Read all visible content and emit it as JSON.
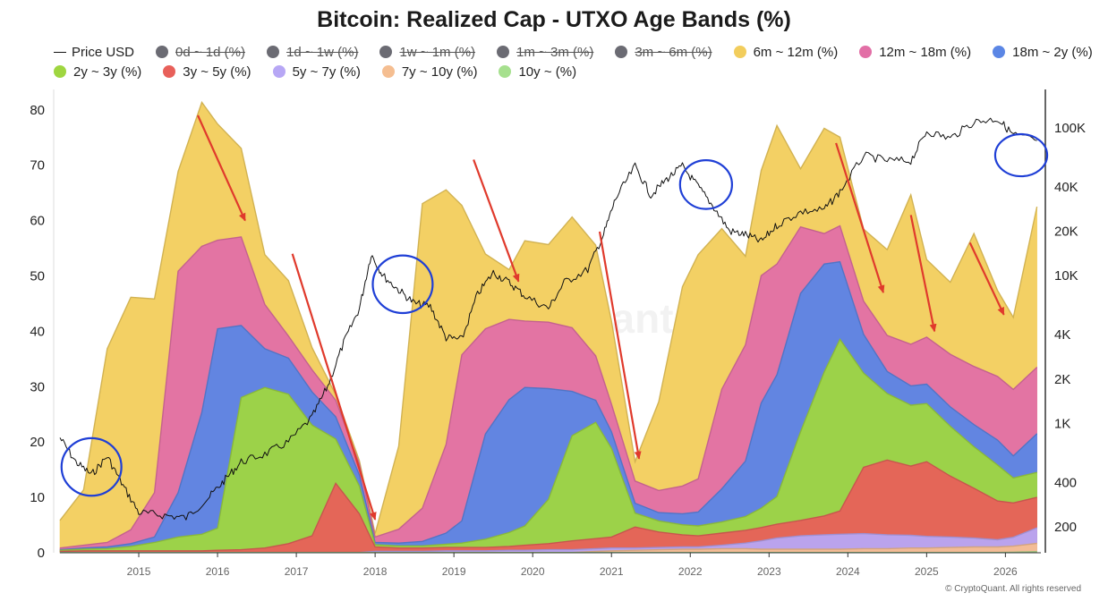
{
  "title": "Bitcoin: Realized Cap - UTXO Age Bands (%)",
  "legend": {
    "row1": [
      {
        "label": "Price USD",
        "kind": "line",
        "color": "#111111",
        "disabled": false
      },
      {
        "label": "0d ~ 1d (%)",
        "color": "#6b6b73",
        "disabled": true
      },
      {
        "label": "1d ~ 1w (%)",
        "color": "#6b6b73",
        "disabled": true
      },
      {
        "label": "1w ~ 1m (%)",
        "color": "#6b6b73",
        "disabled": true
      },
      {
        "label": "1m ~ 3m (%)",
        "color": "#6b6b73",
        "disabled": true
      },
      {
        "label": "3m ~ 6m (%)",
        "color": "#6b6b73",
        "disabled": true
      },
      {
        "label": "6m ~ 12m (%)",
        "color": "#f2cd5c",
        "disabled": false
      },
      {
        "label": "12m ~ 18m (%)",
        "color": "#e26fa6",
        "disabled": false
      },
      {
        "label": "18m ~ 2y (%)",
        "color": "#5b86e5",
        "disabled": false
      }
    ],
    "row2": [
      {
        "label": "2y ~ 3y (%)",
        "color": "#9fd640",
        "disabled": false
      },
      {
        "label": "3y ~ 5y (%)",
        "color": "#e8605a",
        "disabled": false
      },
      {
        "label": "5y ~ 7y (%)",
        "color": "#b7a7f5",
        "disabled": false
      },
      {
        "label": "7y ~ 10y (%)",
        "color": "#f5be91",
        "disabled": false
      },
      {
        "label": "10y ~ (%)",
        "color": "#a6e08e",
        "disabled": false
      }
    ]
  },
  "copyright": "© CryptoQuant. All rights reserved",
  "chart_data": {
    "type": "area",
    "stacked": true,
    "x": [
      2014.0,
      2014.3,
      2014.6,
      2014.9,
      2015.2,
      2015.5,
      2015.8,
      2016.0,
      2016.3,
      2016.6,
      2016.9,
      2017.2,
      2017.5,
      2017.8,
      2018.0,
      2018.3,
      2018.6,
      2018.9,
      2019.1,
      2019.4,
      2019.7,
      2019.9,
      2020.2,
      2020.5,
      2020.8,
      2021.0,
      2021.3,
      2021.6,
      2021.9,
      2022.1,
      2022.4,
      2022.7,
      2022.9,
      2023.1,
      2023.4,
      2023.7,
      2023.9,
      2024.2,
      2024.5,
      2024.8,
      2025.0,
      2025.3,
      2025.6,
      2025.9,
      2026.1,
      2026.4
    ],
    "series": [
      {
        "name": "10y ~ (%)",
        "color": "#a6e08e",
        "values": [
          0.05,
          0.05,
          0.05,
          0.05,
          0.05,
          0.05,
          0.05,
          0.05,
          0.05,
          0.05,
          0.05,
          0.05,
          0.05,
          0.05,
          0.05,
          0.05,
          0.05,
          0.05,
          0.05,
          0.05,
          0.05,
          0.05,
          0.05,
          0.05,
          0.05,
          0.05,
          0.05,
          0.05,
          0.05,
          0.05,
          0.05,
          0.05,
          0.05,
          0.05,
          0.05,
          0.05,
          0.05,
          0.05,
          0.05,
          0.05,
          0.05,
          0.05,
          0.05,
          0.05,
          0.1,
          0.2
        ]
      },
      {
        "name": "7y ~ 10y (%)",
        "color": "#f5be91",
        "values": [
          0,
          0,
          0,
          0,
          0,
          0,
          0,
          0,
          0,
          0,
          0,
          0,
          0,
          0,
          0,
          0,
          0,
          0,
          0,
          0,
          0,
          0,
          0,
          0,
          0.2,
          0.3,
          0.4,
          0.5,
          0.6,
          0.6,
          0.7,
          0.7,
          0.6,
          0.6,
          0.6,
          0.6,
          0.6,
          0.7,
          0.7,
          0.8,
          0.8,
          0.9,
          1.0,
          1.0,
          1.1,
          1.5
        ]
      },
      {
        "name": "5y ~ 7y (%)",
        "color": "#b7a7f5",
        "values": [
          0,
          0,
          0,
          0,
          0,
          0,
          0,
          0,
          0,
          0,
          0,
          0,
          0,
          0,
          0.2,
          0.2,
          0.2,
          0.3,
          0.3,
          0.3,
          0.4,
          0.4,
          0.5,
          0.5,
          0.5,
          0.5,
          0.4,
          0.4,
          0.4,
          0.4,
          0.6,
          1.0,
          1.5,
          2.0,
          2.4,
          2.6,
          2.7,
          2.7,
          2.5,
          2.3,
          2.1,
          1.9,
          1.6,
          1.3,
          1.6,
          2.8
        ]
      },
      {
        "name": "3y ~ 5y (%)",
        "color": "#e8605a",
        "values": [
          0.2,
          0.3,
          0.3,
          0.3,
          0.3,
          0.3,
          0.3,
          0.4,
          0.5,
          0.8,
          1.6,
          3.0,
          12.5,
          7.0,
          0.8,
          0.6,
          0.6,
          0.6,
          0.6,
          0.6,
          0.7,
          0.9,
          1.1,
          1.6,
          1.8,
          2.0,
          3.8,
          2.8,
          2.2,
          2.0,
          2.2,
          2.3,
          2.4,
          2.5,
          2.8,
          3.4,
          4.2,
          12.0,
          13.5,
          12.5,
          13.5,
          11.0,
          9.0,
          7.0,
          6.2,
          5.5
        ]
      },
      {
        "name": "2y ~ 3y (%)",
        "color": "#9fd640",
        "values": [
          0.2,
          0.3,
          0.4,
          0.8,
          1.5,
          2.5,
          3.0,
          4.0,
          27.5,
          29.0,
          27.0,
          20.0,
          8.0,
          5.0,
          0.4,
          0.4,
          0.4,
          0.6,
          0.8,
          1.5,
          2.5,
          3.5,
          8.0,
          19.0,
          21.0,
          16.0,
          2.5,
          2.0,
          1.8,
          1.8,
          2.0,
          2.5,
          3.5,
          5.0,
          16.0,
          26.0,
          31.0,
          17.0,
          12.0,
          11.0,
          10.5,
          9.0,
          7.5,
          6.5,
          4.5,
          4.5
        ]
      },
      {
        "name": "18m ~ 2y (%)",
        "color": "#5b86e5",
        "values": [
          0.1,
          0.2,
          0.3,
          0.5,
          1.0,
          8.0,
          22.0,
          36.0,
          13.0,
          7.0,
          6.5,
          6.0,
          4.0,
          2.0,
          0.4,
          0.5,
          0.8,
          2.0,
          4.0,
          19.0,
          24.0,
          25.0,
          20.0,
          8.0,
          4.0,
          3.0,
          1.8,
          1.5,
          2.0,
          2.5,
          6.0,
          10.0,
          19.0,
          22.0,
          25.0,
          19.5,
          14.0,
          7.0,
          4.0,
          3.5,
          3.5,
          3.5,
          4.0,
          4.5,
          4.0,
          7.0
        ]
      },
      {
        "name": "12m ~ 18m (%)",
        "color": "#e26fa6",
        "values": [
          0.3,
          0.5,
          0.8,
          2.5,
          8.0,
          40.0,
          30.0,
          16.0,
          16.0,
          8.0,
          4.0,
          4.0,
          3.0,
          2.0,
          1.0,
          2.5,
          6.0,
          16.0,
          30.0,
          19.0,
          14.5,
          12.0,
          12.0,
          11.5,
          8.0,
          5.0,
          4.0,
          4.0,
          5.0,
          6.0,
          18.0,
          21.0,
          23.0,
          20.0,
          12.0,
          5.5,
          6.5,
          6.0,
          6.5,
          7.5,
          8.5,
          9.5,
          10.5,
          11.5,
          12.0,
          12.0
        ]
      },
      {
        "name": "6m ~ 12m (%)",
        "color": "#f2cd5c",
        "values": [
          5.0,
          10.0,
          35.0,
          42.0,
          35.0,
          18.0,
          26.0,
          21.0,
          16.0,
          9.0,
          10.0,
          4.0,
          1.0,
          0.6,
          0.6,
          15.0,
          55.0,
          46.0,
          27.0,
          13.5,
          9.0,
          14.5,
          14.0,
          20.0,
          20.0,
          15.0,
          3.5,
          16.0,
          36.0,
          40.5,
          29.0,
          16.0,
          19.0,
          25.0,
          10.5,
          19.0,
          16.0,
          13.0,
          15.5,
          27.0,
          14.0,
          13.0,
          24.0,
          15.5,
          13.0,
          29.0
        ]
      }
    ],
    "price_usd": {
      "name": "Price USD",
      "x": [
        2014.0,
        2014.2,
        2014.4,
        2014.6,
        2014.8,
        2015.0,
        2015.3,
        2015.6,
        2015.9,
        2016.1,
        2016.3,
        2016.6,
        2016.9,
        2017.2,
        2017.4,
        2017.6,
        2017.8,
        2017.95,
        2018.1,
        2018.3,
        2018.5,
        2018.7,
        2018.9,
        2019.1,
        2019.3,
        2019.5,
        2019.7,
        2019.9,
        2020.2,
        2020.4,
        2020.7,
        2020.9,
        2021.05,
        2021.3,
        2021.5,
        2021.7,
        2021.9,
        2022.1,
        2022.3,
        2022.5,
        2022.7,
        2022.9,
        2023.1,
        2023.4,
        2023.7,
        2023.9,
        2024.2,
        2024.5,
        2024.8,
        2025.0,
        2025.3,
        2025.6,
        2025.9,
        2026.1,
        2026.4
      ],
      "values": [
        800,
        550,
        450,
        600,
        380,
        250,
        240,
        230,
        320,
        420,
        550,
        620,
        750,
        1100,
        1800,
        3500,
        6000,
        14000,
        10000,
        8000,
        6500,
        6200,
        3800,
        3700,
        7500,
        10500,
        9000,
        7300,
        6000,
        9000,
        11000,
        19000,
        33000,
        55000,
        35000,
        45000,
        55000,
        40000,
        29000,
        20000,
        19000,
        17000,
        22000,
        27000,
        28000,
        37000,
        65000,
        60000,
        60000,
        95000,
        85000,
        110000,
        115000,
        90000,
        82000
      ]
    },
    "ylim": [
      0,
      82
    ],
    "yticks": [
      0,
      10,
      20,
      30,
      40,
      50,
      60,
      70,
      80
    ],
    "xticks": [
      2015,
      2016,
      2017,
      2018,
      2019,
      2020,
      2021,
      2022,
      2023,
      2024,
      2025,
      2026
    ],
    "y2_scale": "log",
    "y2ticks": [
      {
        "value": 200,
        "label": "200"
      },
      {
        "value": 400,
        "label": "400"
      },
      {
        "value": 1000,
        "label": "1K"
      },
      {
        "value": 2000,
        "label": "2K"
      },
      {
        "value": 4000,
        "label": "4K"
      },
      {
        "value": 10000,
        "label": "10K"
      },
      {
        "value": 20000,
        "label": "20K"
      },
      {
        "value": 40000,
        "label": "40K"
      },
      {
        "value": 100000,
        "label": "100K"
      }
    ],
    "annotations": {
      "arrows": [
        {
          "from": [
            2015.75,
            79
          ],
          "to": [
            2016.35,
            60
          ]
        },
        {
          "from": [
            2016.95,
            54
          ],
          "to": [
            2018.0,
            6
          ]
        },
        {
          "from": [
            2019.25,
            71
          ],
          "to": [
            2019.82,
            49
          ]
        },
        {
          "from": [
            2020.85,
            58
          ],
          "to": [
            2021.35,
            17
          ]
        },
        {
          "from": [
            2023.85,
            74
          ],
          "to": [
            2024.45,
            47
          ]
        },
        {
          "from": [
            2024.8,
            61
          ],
          "to": [
            2025.1,
            40
          ]
        },
        {
          "from": [
            2025.55,
            56
          ],
          "to": [
            2025.98,
            43
          ]
        }
      ],
      "circles": [
        {
          "x": 2014.4,
          "y": 15.5,
          "rx": 0.38,
          "ry": 5.2
        },
        {
          "x": 2018.35,
          "y": 48.5,
          "rx": 0.38,
          "ry": 5.2
        },
        {
          "x": 2022.2,
          "y": 66.5,
          "rx": 0.33,
          "ry": 4.4
        },
        {
          "x": 2026.2,
          "y": 71.8,
          "rx": 0.33,
          "ry": 3.8
        }
      ]
    },
    "watermark": "CryptoQuant"
  }
}
